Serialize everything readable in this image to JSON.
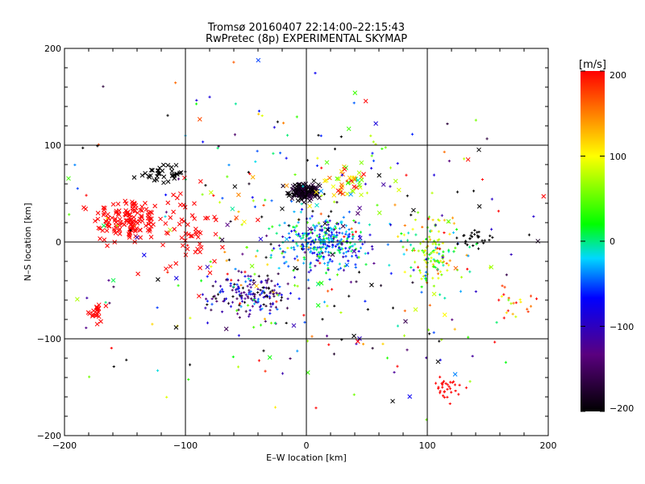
{
  "chart_data": {
    "type": "scatter",
    "title": "Tromsø 20160407 22:14:00–22:15:43",
    "subtitle": "RwPretec (8p) EXPERIMENTAL SKYMAP",
    "xlabel": "E–W location [km]",
    "ylabel": "N–S location [km]",
    "xlim": [
      -200,
      200
    ],
    "ylim": [
      -200,
      200
    ],
    "xticks": [
      "−200",
      "−100",
      "0",
      "100",
      "200"
    ],
    "yticks": [
      "−200",
      "−100",
      "0",
      "100",
      "200"
    ],
    "grid": true,
    "colorbar": {
      "label": "[m/s]",
      "range": [
        -200,
        200
      ],
      "ticks": [
        "200",
        "100",
        "0",
        "−100",
        "−200"
      ],
      "colormap": [
        "#000000",
        "#5a007f",
        "#0000ff",
        "#00d8ff",
        "#00ff00",
        "#ffff00",
        "#ff0000"
      ]
    },
    "clusters": [
      {
        "x": -148,
        "y": 22,
        "sx": 14,
        "sy": 12,
        "n": 140,
        "v": 200,
        "vs": 0,
        "m": "x"
      },
      {
        "x": -120,
        "y": 70,
        "sx": 9,
        "sy": 4,
        "n": 35,
        "v": -200,
        "vs": 0,
        "m": "x"
      },
      {
        "x": -172,
        "y": -72,
        "sx": 4,
        "sy": 6,
        "n": 22,
        "v": 200,
        "vs": 0,
        "m": "x"
      },
      {
        "x": -2,
        "y": 52,
        "sx": 6,
        "sy": 4,
        "n": 160,
        "v": -185,
        "vs": 15,
        "m": "x"
      },
      {
        "x": 15,
        "y": 0,
        "sx": 18,
        "sy": 14,
        "n": 320,
        "v": -40,
        "vs": 40,
        "m": "+"
      },
      {
        "x": -45,
        "y": -55,
        "sx": 18,
        "sy": 12,
        "n": 170,
        "v": -110,
        "vs": 50,
        "m": "+"
      },
      {
        "x": 105,
        "y": -10,
        "sx": 12,
        "sy": 18,
        "n": 140,
        "v": 60,
        "vs": 60,
        "m": "+"
      },
      {
        "x": 138,
        "y": 5,
        "sx": 6,
        "sy": 4,
        "n": 28,
        "v": -200,
        "vs": 0,
        "m": "+"
      },
      {
        "x": 115,
        "y": -150,
        "sx": 6,
        "sy": 7,
        "n": 30,
        "v": 200,
        "vs": 0,
        "m": "+"
      },
      {
        "x": 32,
        "y": 62,
        "sx": 9,
        "sy": 8,
        "n": 45,
        "v": 120,
        "vs": 70,
        "m": "x"
      },
      {
        "x": -95,
        "y": 10,
        "sx": 12,
        "sy": 22,
        "n": 55,
        "v": 200,
        "vs": 0,
        "m": "x"
      },
      {
        "x": 0,
        "y": 0,
        "sx": 95,
        "sy": 85,
        "n": 320,
        "v": 0,
        "vs": 150,
        "m": "+"
      },
      {
        "x": 0,
        "y": 0,
        "sx": 90,
        "sy": 80,
        "n": 90,
        "v": 0,
        "vs": 160,
        "m": "x"
      },
      {
        "x": 168,
        "y": -65,
        "sx": 8,
        "sy": 12,
        "n": 20,
        "v": 150,
        "vs": 60,
        "m": "+"
      }
    ]
  }
}
